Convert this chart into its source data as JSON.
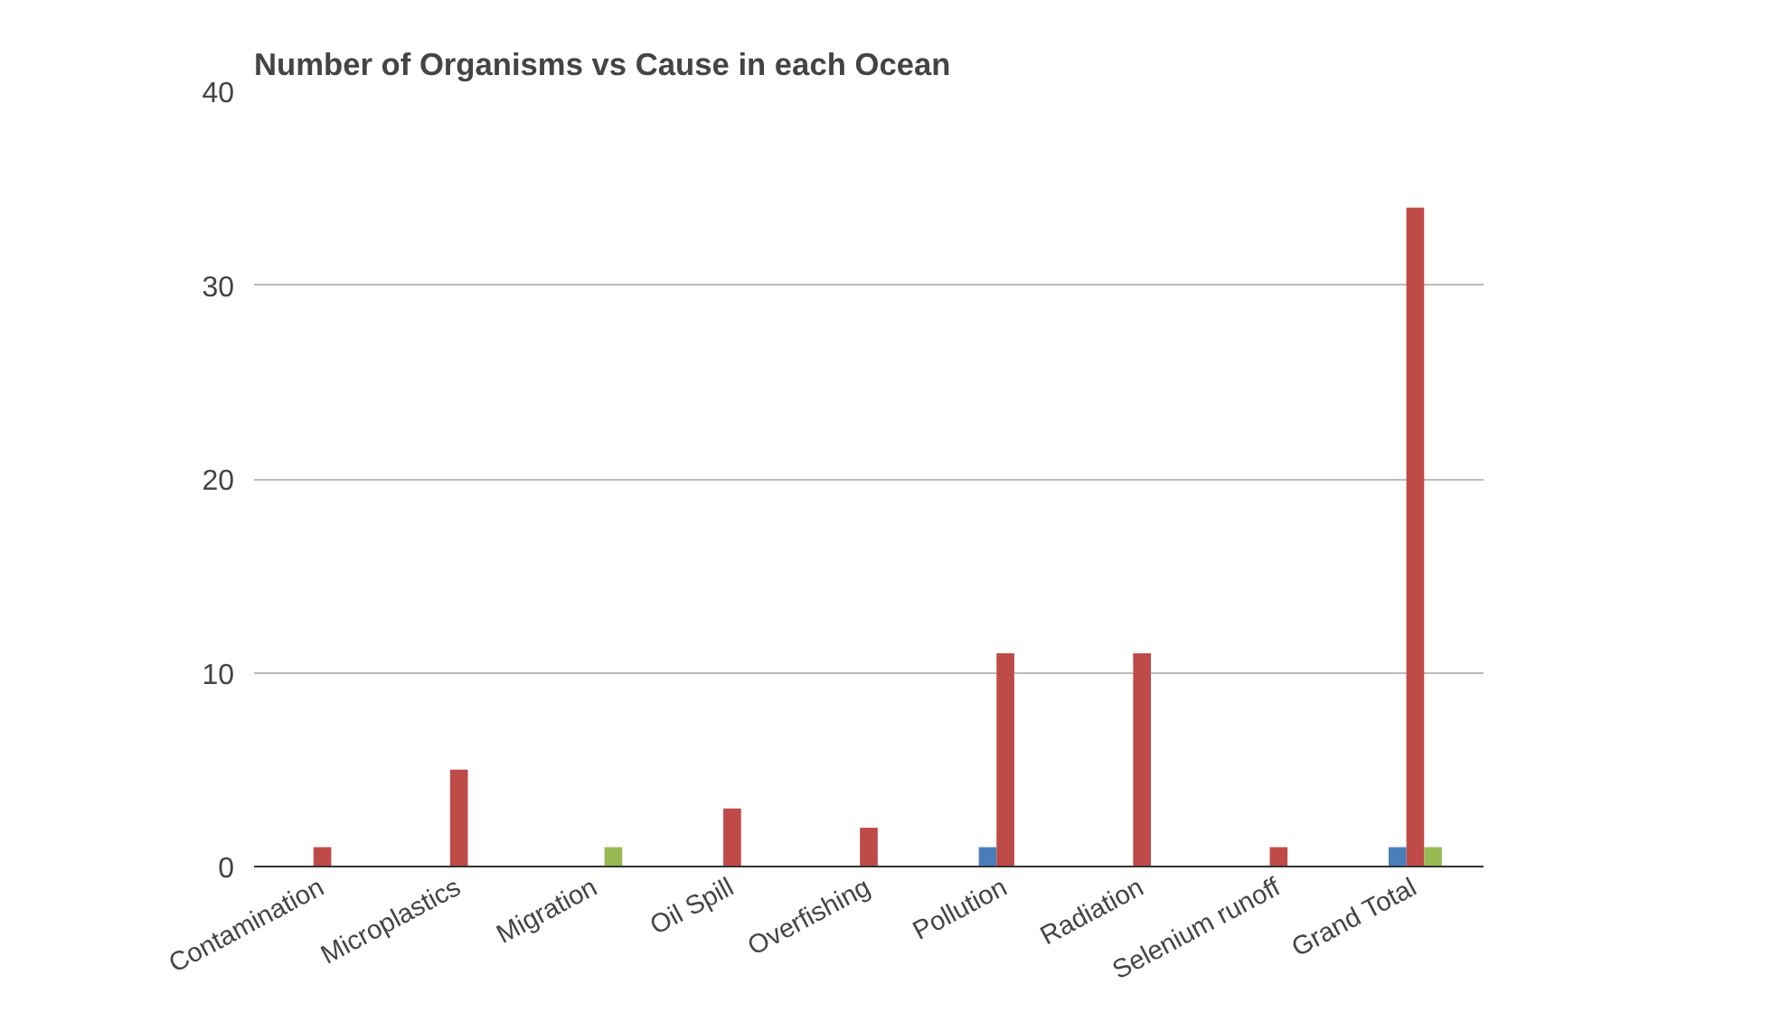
{
  "chart_data": {
    "type": "bar",
    "title": "Number of Organisms vs Cause in each Ocean",
    "categories": [
      "Contamination",
      "Microplastics",
      "Migration",
      "Oil Spill",
      "Overfishing",
      "Pollution",
      "Radiation",
      "Selenium runoff",
      "Grand Total"
    ],
    "series": [
      {
        "color": "#4a7ebb",
        "values": [
          null,
          null,
          null,
          null,
          null,
          1,
          null,
          null,
          1
        ]
      },
      {
        "color": "#be4b48",
        "values": [
          1,
          5,
          null,
          3,
          2,
          11,
          11,
          1,
          34
        ]
      },
      {
        "color": "#98b954",
        "values": [
          null,
          null,
          1,
          null,
          null,
          null,
          null,
          null,
          1
        ]
      }
    ],
    "ylim": [
      0,
      40
    ],
    "yticks": [
      0,
      10,
      20,
      30,
      40
    ],
    "grid": "y"
  }
}
